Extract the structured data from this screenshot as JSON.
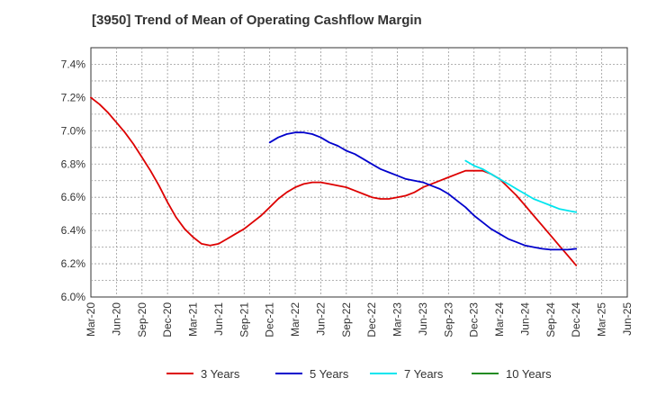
{
  "chart_data": {
    "type": "line",
    "title": "[3950]  Trend of Mean of Operating Cashflow Margin",
    "xlabel": "",
    "ylabel": "",
    "x_ticks": [
      "Mar-20",
      "Jun-20",
      "Sep-20",
      "Dec-20",
      "Mar-21",
      "Jun-21",
      "Sep-21",
      "Dec-21",
      "Mar-22",
      "Jun-22",
      "Sep-22",
      "Dec-22",
      "Mar-23",
      "Jun-23",
      "Sep-23",
      "Dec-23",
      "Mar-24",
      "Jun-24",
      "Sep-24",
      "Dec-24",
      "Mar-25",
      "Jun-25"
    ],
    "y_ticks": [
      "6.0%",
      "6.2%",
      "6.4%",
      "6.6%",
      "6.8%",
      "7.0%",
      "7.2%",
      "7.4%"
    ],
    "ylim": [
      6.0,
      7.5
    ],
    "y_unit": "%",
    "grid": true,
    "legend_position": "bottom",
    "series": [
      {
        "name": "3 Years",
        "color": "#dd0000",
        "x": [
          "Mar-20",
          "Apr-20",
          "May-20",
          "Jun-20",
          "Jul-20",
          "Aug-20",
          "Sep-20",
          "Oct-20",
          "Nov-20",
          "Dec-20",
          "Jan-21",
          "Feb-21",
          "Mar-21",
          "Apr-21",
          "May-21",
          "Jun-21",
          "Jul-21",
          "Aug-21",
          "Sep-21",
          "Oct-21",
          "Nov-21",
          "Dec-21",
          "Jan-22",
          "Feb-22",
          "Mar-22",
          "Apr-22",
          "May-22",
          "Jun-22",
          "Jul-22",
          "Aug-22",
          "Sep-22",
          "Oct-22",
          "Nov-22",
          "Dec-22",
          "Jan-23",
          "Feb-23",
          "Mar-23",
          "Apr-23",
          "May-23",
          "Jun-23",
          "Jul-23",
          "Aug-23",
          "Sep-23",
          "Oct-23",
          "Nov-23",
          "Dec-23",
          "Jan-24",
          "Feb-24",
          "Mar-24",
          "Apr-24",
          "May-24",
          "Jun-24",
          "Jul-24",
          "Aug-24",
          "Sep-24",
          "Oct-24",
          "Nov-24",
          "Dec-24"
        ],
        "values": [
          7.2,
          7.16,
          7.11,
          7.05,
          6.99,
          6.92,
          6.84,
          6.76,
          6.67,
          6.57,
          6.48,
          6.41,
          6.36,
          6.32,
          6.31,
          6.32,
          6.35,
          6.38,
          6.41,
          6.45,
          6.49,
          6.54,
          6.59,
          6.63,
          6.66,
          6.68,
          6.69,
          6.69,
          6.68,
          6.67,
          6.66,
          6.64,
          6.62,
          6.6,
          6.59,
          6.59,
          6.6,
          6.61,
          6.63,
          6.66,
          6.68,
          6.7,
          6.72,
          6.74,
          6.76,
          6.76,
          6.76,
          6.74,
          6.71,
          6.66,
          6.61,
          6.55,
          6.49,
          6.43,
          6.37,
          6.31,
          6.25,
          6.19
        ]
      },
      {
        "name": "5 Years",
        "color": "#0000cc",
        "x": [
          "Dec-21",
          "Jan-22",
          "Feb-22",
          "Mar-22",
          "Apr-22",
          "May-22",
          "Jun-22",
          "Jul-22",
          "Aug-22",
          "Sep-22",
          "Oct-22",
          "Nov-22",
          "Dec-22",
          "Jan-23",
          "Feb-23",
          "Mar-23",
          "Apr-23",
          "May-23",
          "Jun-23",
          "Jul-23",
          "Aug-23",
          "Sep-23",
          "Oct-23",
          "Nov-23",
          "Dec-23",
          "Jan-24",
          "Feb-24",
          "Mar-24",
          "Apr-24",
          "May-24",
          "Jun-24",
          "Jul-24",
          "Aug-24",
          "Sep-24",
          "Oct-24",
          "Nov-24",
          "Dec-24"
        ],
        "values": [
          6.93,
          6.96,
          6.98,
          6.99,
          6.99,
          6.98,
          6.96,
          6.93,
          6.91,
          6.88,
          6.86,
          6.83,
          6.8,
          6.77,
          6.75,
          6.73,
          6.71,
          6.7,
          6.69,
          6.67,
          6.65,
          6.62,
          6.58,
          6.54,
          6.49,
          6.45,
          6.41,
          6.38,
          6.35,
          6.33,
          6.31,
          6.3,
          6.29,
          6.285,
          6.285,
          6.285,
          6.29
        ]
      },
      {
        "name": "7 Years",
        "color": "#00e5ee",
        "x": [
          "Nov-23",
          "Dec-23",
          "Jan-24",
          "Feb-24",
          "Mar-24",
          "Apr-24",
          "May-24",
          "Jun-24",
          "Jul-24",
          "Aug-24",
          "Sep-24",
          "Oct-24",
          "Nov-24",
          "Dec-24"
        ],
        "values": [
          6.82,
          6.79,
          6.77,
          6.74,
          6.71,
          6.68,
          6.65,
          6.62,
          6.59,
          6.57,
          6.55,
          6.53,
          6.52,
          6.51
        ]
      },
      {
        "name": "10 Years",
        "color": "#228b22",
        "x": [],
        "values": []
      }
    ]
  }
}
